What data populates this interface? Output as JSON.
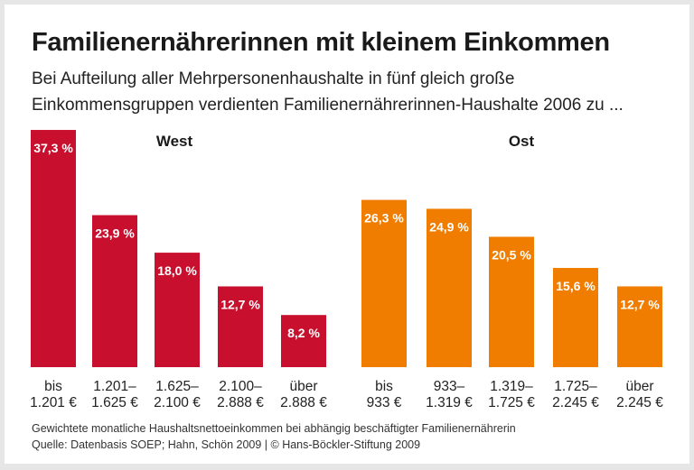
{
  "title": "Familienernährerinnen mit kleinem Einkommen",
  "subtitle_line1": "Bei Aufteilung aller Mehrpersonenhaushalte in fünf gleich große",
  "subtitle_line2": "Einkommensgruppen verdienten Familienernährerinnen-Haushalte 2006 zu ...",
  "footnote": "Gewichtete monatliche Haushaltsnettoeinkommen bei abhängig beschäftigter Familienernährerin",
  "source": "Quelle: Datenbasis SOEP; Hahn, Schön 2009 | © Hans-Böckler-Stiftung 2009",
  "colors": {
    "West": "#c8102e",
    "Ost": "#f07d00"
  },
  "chart_data": [
    {
      "type": "bar",
      "title": "West",
      "categories": [
        [
          "bis",
          "1.201 €"
        ],
        [
          "1.201–",
          "1.625 €"
        ],
        [
          "1.625–",
          "2.100 €"
        ],
        [
          "2.100–",
          "2.888 €"
        ],
        [
          "über",
          "2.888 €"
        ]
      ],
      "values": [
        37.3,
        23.9,
        18.0,
        12.7,
        8.2
      ],
      "labels": [
        "37,3 %",
        "23,9 %",
        "18,0 %",
        "12,7 %",
        "8,2 %"
      ]
    },
    {
      "type": "bar",
      "title": "Ost",
      "categories": [
        [
          "bis",
          "933 €"
        ],
        [
          "933–",
          "1.319 €"
        ],
        [
          "1.319–",
          "1.725 €"
        ],
        [
          "1.725–",
          "2.245 €"
        ],
        [
          "über",
          "2.245 €"
        ]
      ],
      "values": [
        26.3,
        24.9,
        20.5,
        15.6,
        12.7
      ],
      "labels": [
        "26,3 %",
        "24,9 %",
        "20,5 %",
        "15,6 %",
        "12,7 %"
      ]
    }
  ]
}
